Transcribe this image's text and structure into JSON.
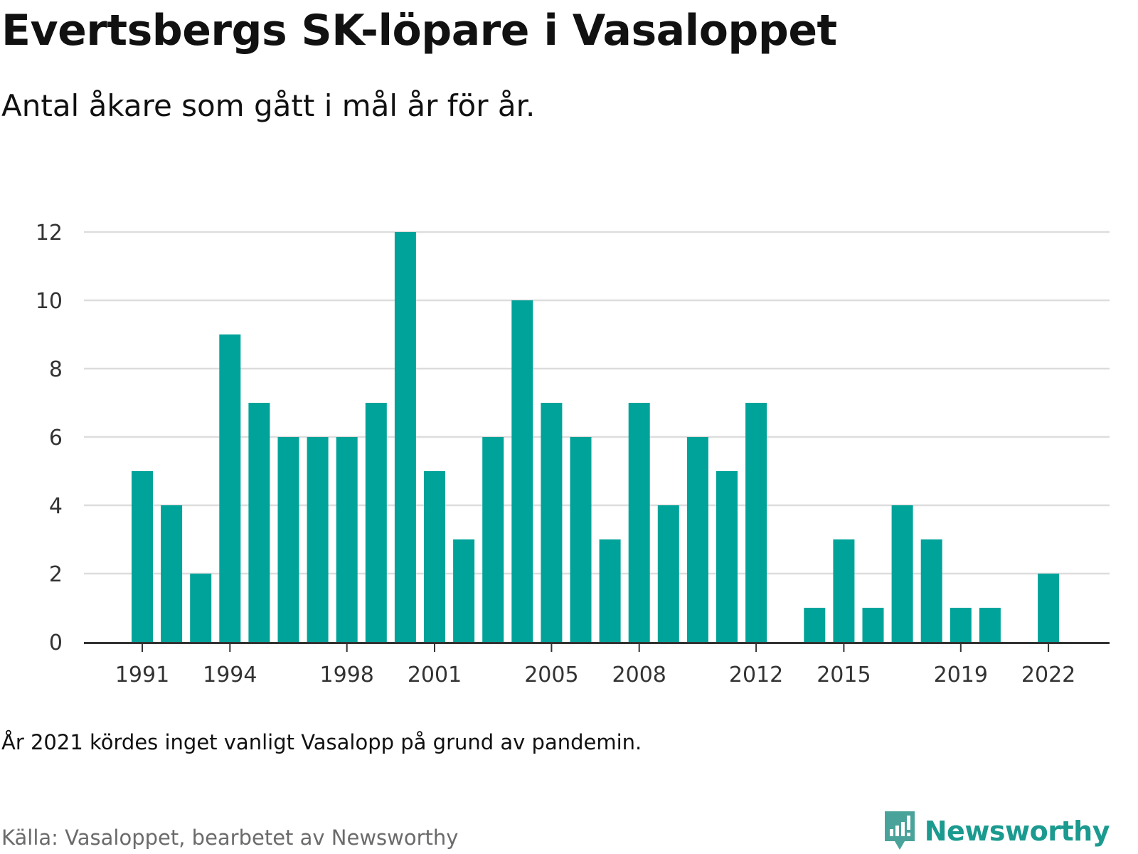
{
  "chart_data": {
    "type": "bar",
    "title": "Evertsbergs SK-löpare i Vasaloppet",
    "subtitle": "Antal åkare som gått i mål år för år.",
    "xlabel": "",
    "ylabel": "",
    "categories": [
      "1991",
      "1992",
      "1993",
      "1994",
      "1995",
      "1996",
      "1997",
      "1998",
      "1999",
      "2000",
      "2001",
      "2002",
      "2003",
      "2004",
      "2005",
      "2006",
      "2007",
      "2008",
      "2009",
      "2010",
      "2011",
      "2012",
      "2013",
      "2014",
      "2015",
      "2016",
      "2017",
      "2018",
      "2019",
      "2020",
      "2021",
      "2022"
    ],
    "values": [
      5,
      4,
      2,
      9,
      7,
      6,
      6,
      6,
      7,
      12,
      5,
      3,
      6,
      10,
      7,
      6,
      3,
      7,
      4,
      6,
      5,
      7,
      0,
      1,
      3,
      1,
      4,
      3,
      1,
      1,
      0,
      2
    ],
    "x_tick_labels": [
      "1991",
      "1994",
      "1998",
      "2001",
      "2005",
      "2008",
      "2012",
      "2015",
      "2019",
      "2022"
    ],
    "y_ticks": [
      0,
      2,
      4,
      6,
      8,
      10,
      12
    ],
    "ylim": [
      0,
      12
    ],
    "grid": true,
    "legend": "none",
    "bar_color": "#00a39a",
    "grid_color": "#dddddd",
    "axis_color": "#333333"
  },
  "footer": {
    "note": "År 2021 kördes inget vanligt Vasalopp på grund av pandemin.",
    "source": "Källa: Vasaloppet, bearbetet av Newsworthy"
  },
  "brand": {
    "name": "Newsworthy",
    "logo_icon": "newsworthy-logo-icon",
    "color": "#1b9a8f"
  }
}
